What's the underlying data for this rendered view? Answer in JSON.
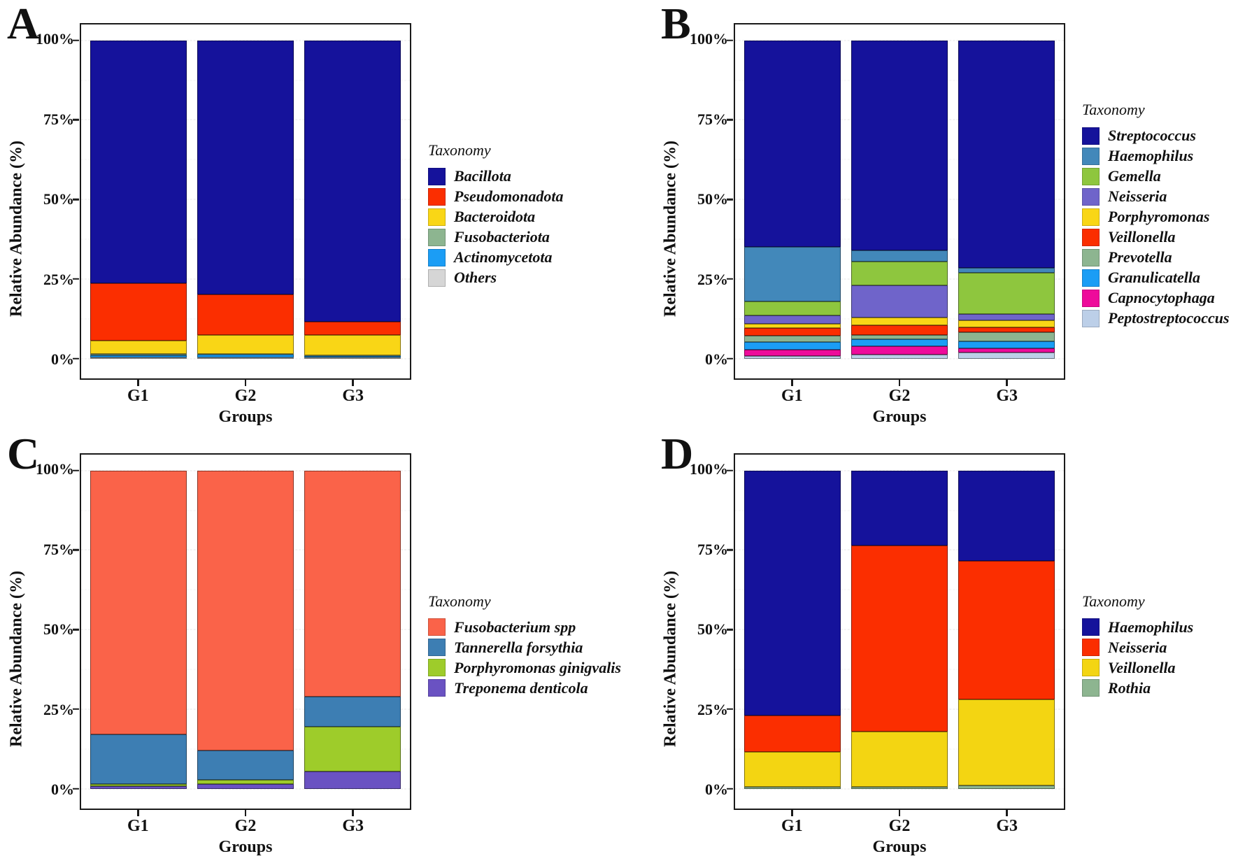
{
  "figure": {
    "background": "#ffffff",
    "axis_color": "#1a1a1a"
  },
  "chart_data": [
    {
      "id": "A",
      "panel_label": "A",
      "type": "bar",
      "stacked": true,
      "units": "percent",
      "ylabel": "Relative Abundance (%)",
      "xlabel": "Groups",
      "legend_title": "Taxonomy",
      "legend_position": "right",
      "ylim": [
        0,
        100
      ],
      "grid": true,
      "categories": [
        "G1",
        "G2",
        "G3"
      ],
      "y_ticks": [
        {
          "value": 100,
          "label": "100%"
        },
        {
          "value": 75,
          "label": "75%"
        },
        {
          "value": 50,
          "label": "50%"
        },
        {
          "value": 25,
          "label": "25%"
        },
        {
          "value": 0,
          "label": "0%"
        }
      ],
      "y_minor_ticks": [
        12.5,
        37.5,
        62.5,
        87.5
      ],
      "series": [
        {
          "name": "Bacillota",
          "color": "#15129b",
          "values": [
            76.4,
            79.9,
            88.4
          ]
        },
        {
          "name": "Pseudomonadota",
          "color": "#fb2e00",
          "values": [
            17.9,
            12.6,
            4.3
          ]
        },
        {
          "name": "Bacteroidota",
          "color": "#f9d616",
          "values": [
            4.3,
            6.0,
            6.3
          ]
        },
        {
          "name": "Fusobacteriota",
          "color": "#8db590",
          "values": [
            0.3,
            0.3,
            0.2
          ]
        },
        {
          "name": "Actinomycetota",
          "color": "#1b9df5",
          "values": [
            0.8,
            0.9,
            0.5
          ]
        },
        {
          "name": "Others",
          "color": "#d6d6d6",
          "values": [
            0.3,
            0.3,
            0.3
          ]
        }
      ]
    },
    {
      "id": "B",
      "panel_label": "B",
      "type": "bar",
      "stacked": true,
      "units": "percent",
      "ylabel": "Relative Abundance (%)",
      "xlabel": "Groups",
      "legend_title": "Taxonomy",
      "legend_position": "right",
      "ylim": [
        0,
        100
      ],
      "grid": true,
      "categories": [
        "G1",
        "G2",
        "G3"
      ],
      "y_ticks": [
        {
          "value": 100,
          "label": "100%"
        },
        {
          "value": 75,
          "label": "75%"
        },
        {
          "value": 50,
          "label": "50%"
        },
        {
          "value": 25,
          "label": "25%"
        },
        {
          "value": 0,
          "label": "0%"
        }
      ],
      "y_minor_ticks": [
        12.5,
        37.5,
        62.5,
        87.5
      ],
      "series": [
        {
          "name": "Streptococcus",
          "color": "#15129b",
          "values": [
            65.0,
            66.0,
            71.5
          ]
        },
        {
          "name": "Haemophilus",
          "color": "#4288ba",
          "values": [
            17.0,
            3.5,
            1.5
          ]
        },
        {
          "name": "Gemella",
          "color": "#8ec63e",
          "values": [
            4.5,
            7.5,
            13.0
          ]
        },
        {
          "name": "Neisseria",
          "color": "#6f64ca",
          "values": [
            2.5,
            10.0,
            2.0
          ]
        },
        {
          "name": "Porphyromonas",
          "color": "#f9d616",
          "values": [
            1.5,
            2.5,
            2.2
          ]
        },
        {
          "name": "Veillonella",
          "color": "#fb2e00",
          "values": [
            2.4,
            3.0,
            1.5
          ]
        },
        {
          "name": "Prevotella",
          "color": "#8db590",
          "values": [
            2.0,
            1.4,
            2.8
          ]
        },
        {
          "name": "Granulicatella",
          "color": "#1b9df5",
          "values": [
            2.4,
            2.2,
            2.2
          ]
        },
        {
          "name": "Capnocytophaga",
          "color": "#ee0b9b",
          "values": [
            1.9,
            2.6,
            1.5
          ]
        },
        {
          "name": "Peptostreptococcus",
          "color": "#bccfe8",
          "values": [
            0.8,
            1.3,
            1.8
          ]
        }
      ]
    },
    {
      "id": "C",
      "panel_label": "C",
      "type": "bar",
      "stacked": true,
      "units": "percent",
      "ylabel": "Relative Abundance (%)",
      "xlabel": "Groups",
      "legend_title": "Taxonomy",
      "legend_position": "right",
      "ylim": [
        0,
        100
      ],
      "grid": true,
      "categories": [
        "G1",
        "G2",
        "G3"
      ],
      "y_ticks": [
        {
          "value": 100,
          "label": "100%"
        },
        {
          "value": 75,
          "label": "75%"
        },
        {
          "value": 50,
          "label": "50%"
        },
        {
          "value": 25,
          "label": "25%"
        },
        {
          "value": 0,
          "label": "0%"
        }
      ],
      "y_minor_ticks": [
        12.5,
        37.5,
        62.5,
        87.5
      ],
      "series": [
        {
          "name": "Fusobacterium spp",
          "color": "#fa6349",
          "values": [
            83.0,
            88.0,
            71.0
          ]
        },
        {
          "name": "Tannerella forsythia",
          "color": "#3d7eb3",
          "values": [
            15.6,
            9.3,
            9.5
          ]
        },
        {
          "name": "Porphyromonas ginigvalis",
          "color": "#9ecc2a",
          "values": [
            0.5,
            1.2,
            14.0
          ]
        },
        {
          "name": "Treponema denticola",
          "color": "#6a52c2",
          "values": [
            0.9,
            1.5,
            5.5
          ]
        }
      ]
    },
    {
      "id": "D",
      "panel_label": "D",
      "type": "bar",
      "stacked": true,
      "units": "percent",
      "ylabel": "Relative Abundance (%)",
      "xlabel": "Groups",
      "legend_title": "Taxonomy",
      "legend_position": "right",
      "ylim": [
        0,
        100
      ],
      "grid": true,
      "categories": [
        "G1",
        "G2",
        "G3"
      ],
      "y_ticks": [
        {
          "value": 100,
          "label": "100%"
        },
        {
          "value": 75,
          "label": "75%"
        },
        {
          "value": 50,
          "label": "50%"
        },
        {
          "value": 25,
          "label": "25%"
        },
        {
          "value": 0,
          "label": "0%"
        }
      ],
      "y_minor_ticks": [
        12.5,
        37.5,
        62.5,
        87.5
      ],
      "series": [
        {
          "name": "Haemophilus",
          "color": "#15129b",
          "values": [
            77.0,
            23.5,
            28.5
          ]
        },
        {
          "name": "Neisseria",
          "color": "#fb2e00",
          "values": [
            11.5,
            58.5,
            43.5
          ]
        },
        {
          "name": "Veillonella",
          "color": "#f3d512",
          "values": [
            11.0,
            17.5,
            27.0
          ]
        },
        {
          "name": "Rothia",
          "color": "#8db590",
          "values": [
            0.5,
            0.5,
            1.0
          ]
        }
      ]
    }
  ]
}
